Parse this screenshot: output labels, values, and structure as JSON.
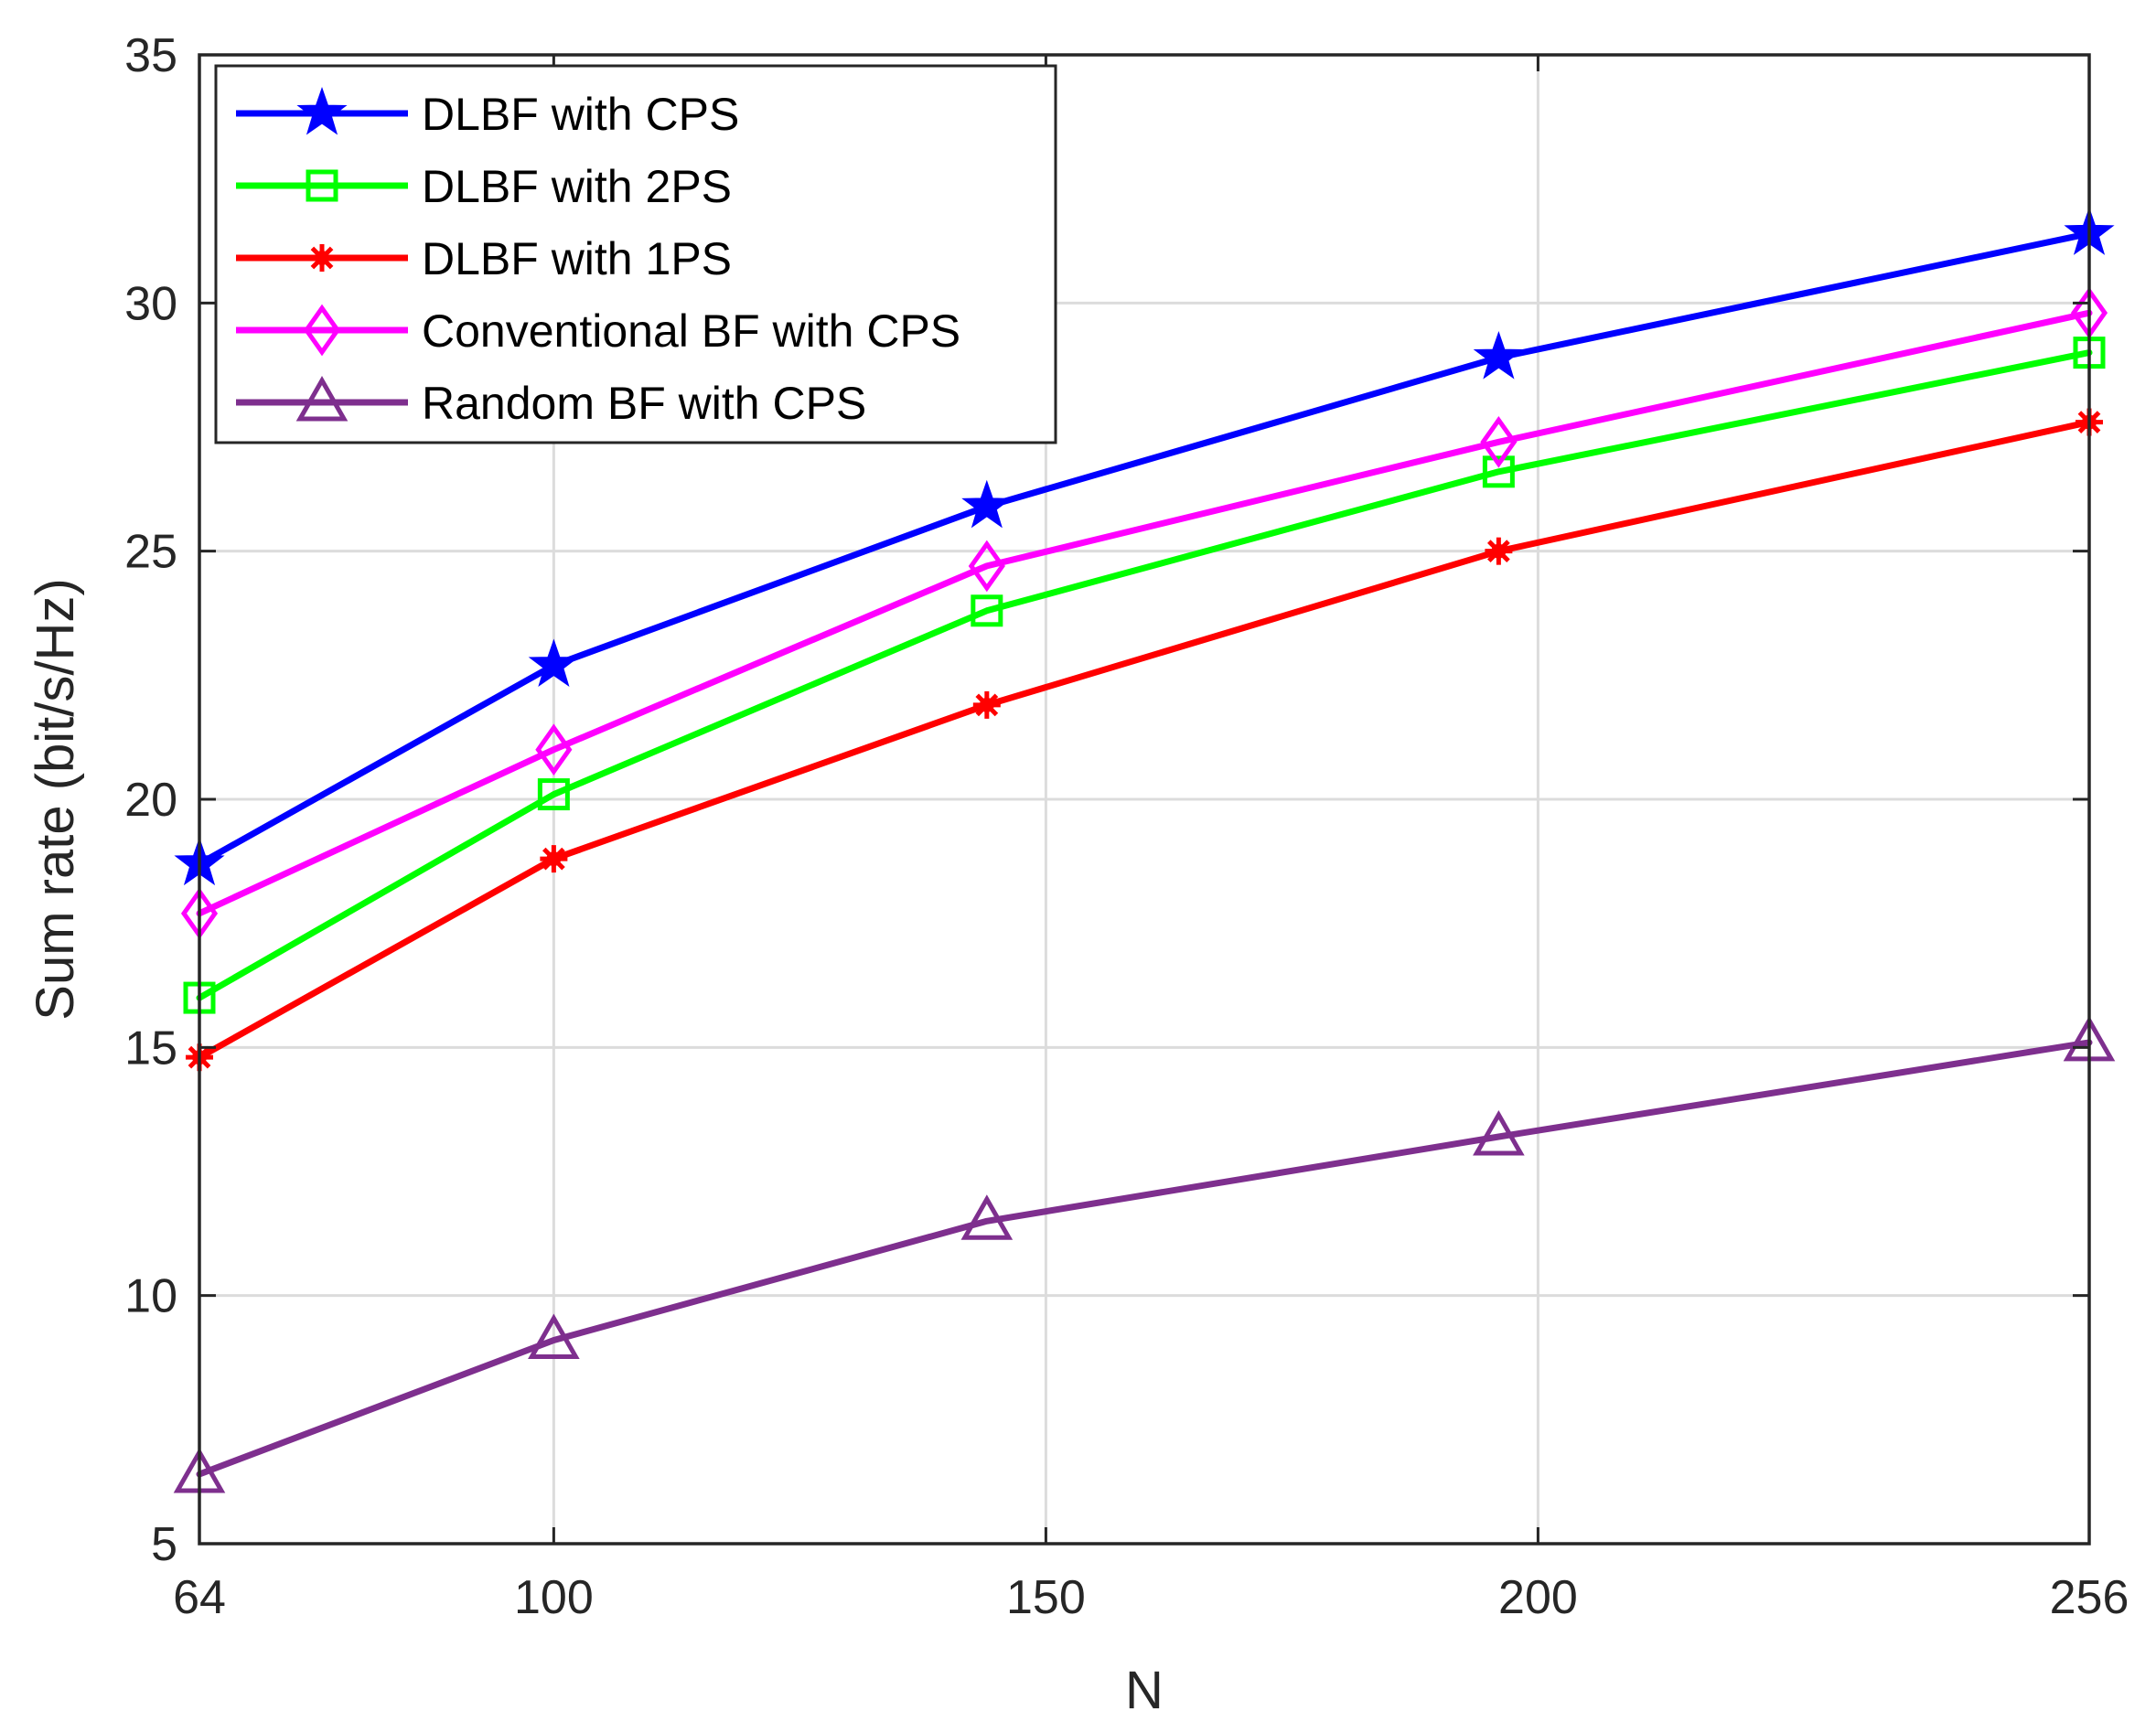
{
  "chart_data": {
    "type": "line",
    "title": "",
    "xlabel": "N",
    "ylabel": "Sum rate (bit/s/Hz)",
    "x": [
      64,
      100,
      144,
      196,
      256
    ],
    "xticks": [
      64,
      100,
      150,
      200,
      256
    ],
    "yticks": [
      5,
      10,
      15,
      20,
      25,
      30,
      35
    ],
    "xlim": [
      64,
      256
    ],
    "ylim": [
      5,
      35
    ],
    "grid": true,
    "legend_position": "top-left",
    "series": [
      {
        "name": "DLBF with CPS",
        "color": "#0000ff",
        "marker": "star",
        "values": [
          18.7,
          22.7,
          25.9,
          28.9,
          31.4
        ]
      },
      {
        "name": "DLBF with 2PS",
        "color": "#00ff00",
        "marker": "square",
        "values": [
          16.0,
          20.1,
          23.8,
          26.6,
          29.0
        ]
      },
      {
        "name": "DLBF with 1PS",
        "color": "#ff0000",
        "marker": "asterisk",
        "values": [
          14.8,
          18.8,
          21.9,
          25.0,
          27.6
        ]
      },
      {
        "name": "Conventional BF with CPS",
        "color": "#ff00ff",
        "marker": "diamond",
        "values": [
          17.7,
          21.0,
          24.7,
          27.2,
          29.8
        ]
      },
      {
        "name": "Random BF with CPS",
        "color": "#7e2f8e",
        "marker": "triangle",
        "values": [
          6.4,
          9.1,
          11.5,
          13.2,
          15.1
        ]
      }
    ]
  }
}
